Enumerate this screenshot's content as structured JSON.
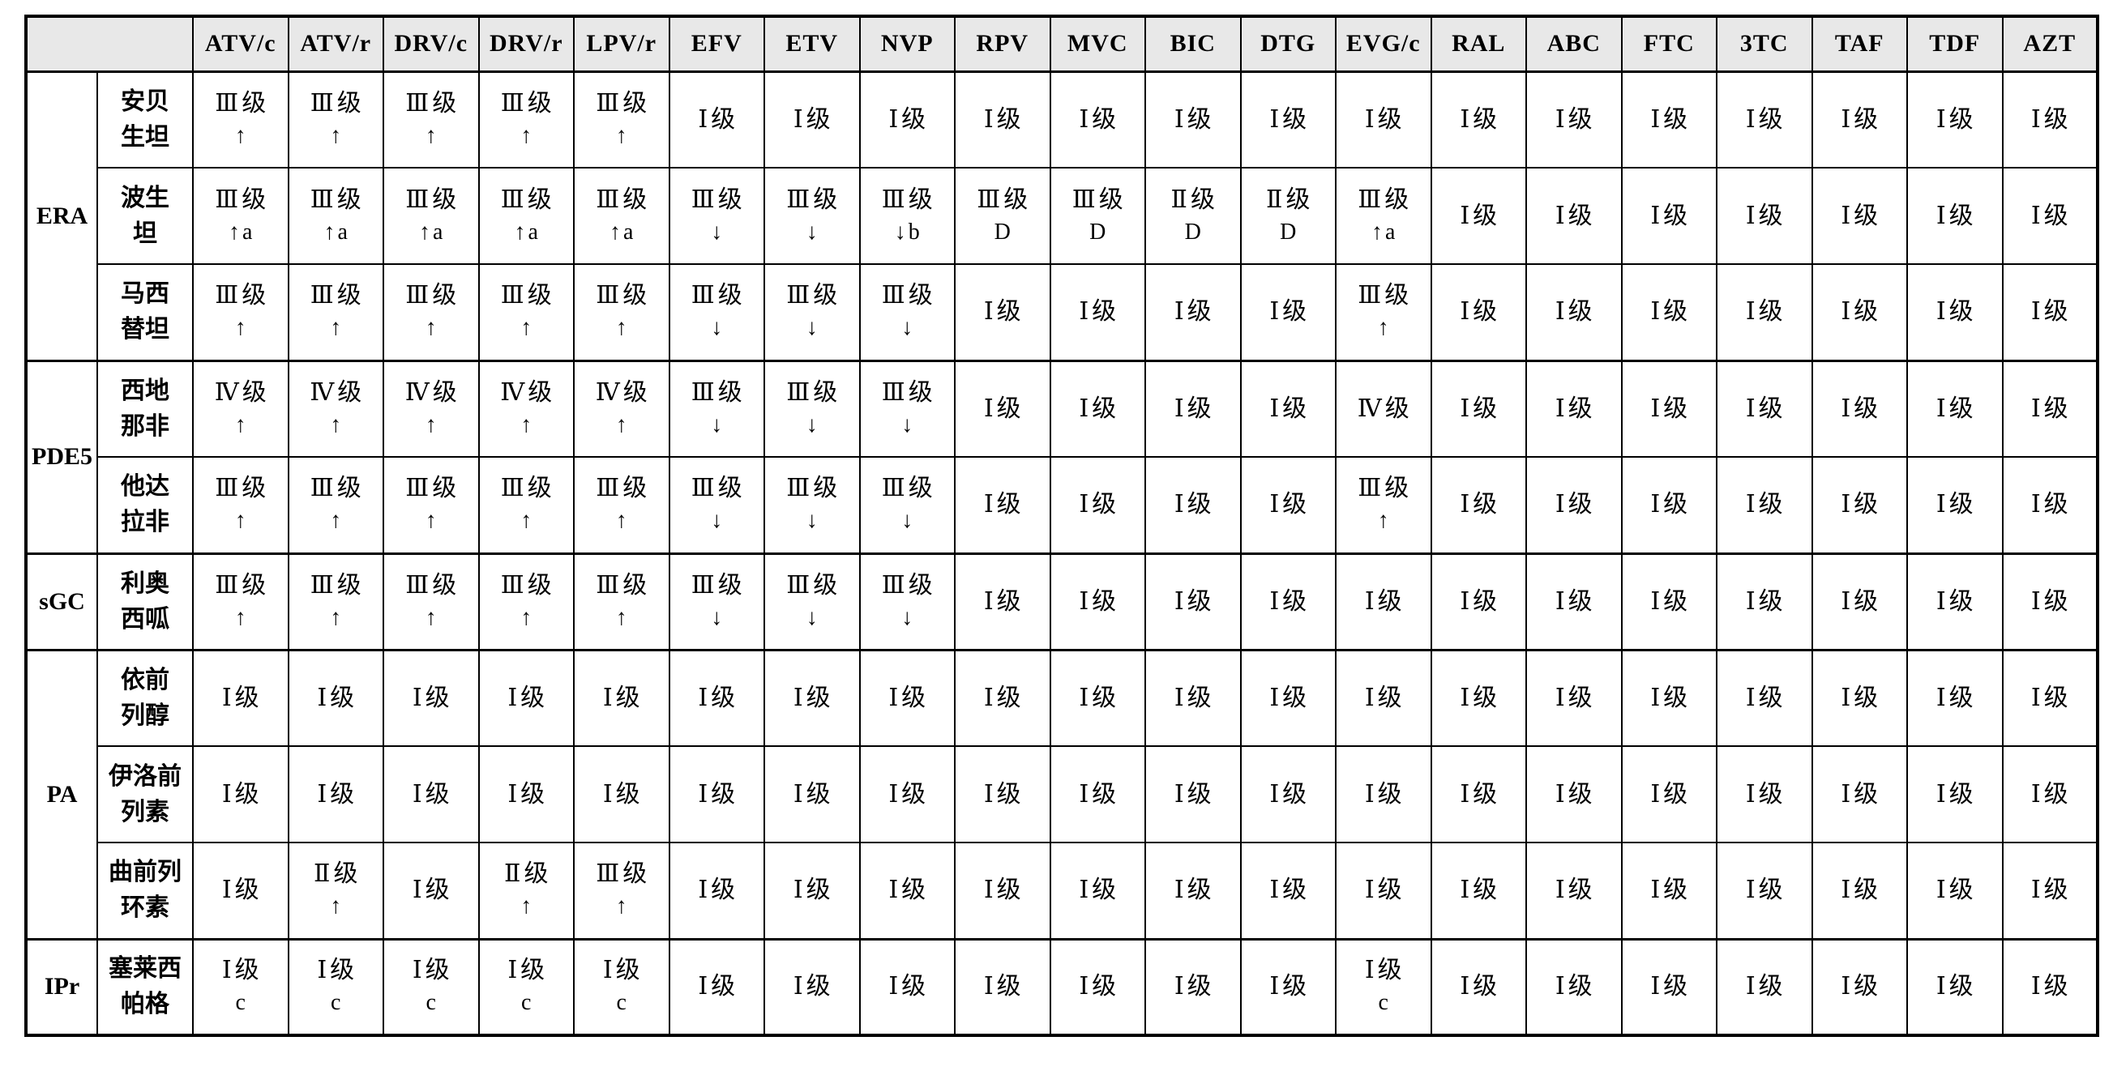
{
  "colors": {
    "page_bg": "#ffffff",
    "header_bg": "#e8e8e8",
    "border": "#000000",
    "text": "#000000"
  },
  "table": {
    "header": {
      "corner": "",
      "columns": [
        "ATV/c",
        "ATV/r",
        "DRV/c",
        "DRV/r",
        "LPV/r",
        "EFV",
        "ETV",
        "NVP",
        "RPV",
        "MVC",
        "BIC",
        "DTG",
        "EVG/c",
        "RAL",
        "ABC",
        "FTC",
        "3TC",
        "TAF",
        "TDF",
        "AZT"
      ]
    },
    "groups": [
      {
        "label": "ERA",
        "rows": [
          {
            "drug": "安贝\n生坦",
            "cells": [
              [
                "Ⅲ级",
                "↑"
              ],
              [
                "Ⅲ级",
                "↑"
              ],
              [
                "Ⅲ级",
                "↑"
              ],
              [
                "Ⅲ级",
                "↑"
              ],
              [
                "Ⅲ级",
                "↑"
              ],
              [
                "Ⅰ级"
              ],
              [
                "Ⅰ级"
              ],
              [
                "Ⅰ级"
              ],
              [
                "Ⅰ级"
              ],
              [
                "Ⅰ级"
              ],
              [
                "Ⅰ级"
              ],
              [
                "Ⅰ级"
              ],
              [
                "Ⅰ级"
              ],
              [
                "Ⅰ级"
              ],
              [
                "Ⅰ级"
              ],
              [
                "Ⅰ级"
              ],
              [
                "Ⅰ级"
              ],
              [
                "Ⅰ级"
              ],
              [
                "Ⅰ级"
              ],
              [
                "Ⅰ级"
              ]
            ]
          },
          {
            "drug": "波生\n坦",
            "cells": [
              [
                "Ⅲ级",
                "↑a"
              ],
              [
                "Ⅲ级",
                "↑a"
              ],
              [
                "Ⅲ级",
                "↑a"
              ],
              [
                "Ⅲ级",
                "↑a"
              ],
              [
                "Ⅲ级",
                "↑a"
              ],
              [
                "Ⅲ级",
                "↓"
              ],
              [
                "Ⅲ级",
                "↓"
              ],
              [
                "Ⅲ级",
                "↓b"
              ],
              [
                "Ⅲ级",
                "D"
              ],
              [
                "Ⅲ级",
                "D"
              ],
              [
                "Ⅱ级",
                "D"
              ],
              [
                "Ⅱ级",
                "D"
              ],
              [
                "Ⅲ级",
                "↑a"
              ],
              [
                "Ⅰ级"
              ],
              [
                "Ⅰ级"
              ],
              [
                "Ⅰ级"
              ],
              [
                "Ⅰ级"
              ],
              [
                "Ⅰ级"
              ],
              [
                "Ⅰ级"
              ],
              [
                "Ⅰ级"
              ]
            ]
          },
          {
            "drug": "马西\n替坦",
            "cells": [
              [
                "Ⅲ级",
                "↑"
              ],
              [
                "Ⅲ级",
                "↑"
              ],
              [
                "Ⅲ级",
                "↑"
              ],
              [
                "Ⅲ级",
                "↑"
              ],
              [
                "Ⅲ级",
                "↑"
              ],
              [
                "Ⅲ级",
                "↓"
              ],
              [
                "Ⅲ级",
                "↓"
              ],
              [
                "Ⅲ级",
                "↓"
              ],
              [
                "Ⅰ级"
              ],
              [
                "Ⅰ级"
              ],
              [
                "Ⅰ级"
              ],
              [
                "Ⅰ级"
              ],
              [
                "Ⅲ级",
                "↑"
              ],
              [
                "Ⅰ级"
              ],
              [
                "Ⅰ级"
              ],
              [
                "Ⅰ级"
              ],
              [
                "Ⅰ级"
              ],
              [
                "Ⅰ级"
              ],
              [
                "Ⅰ级"
              ],
              [
                "Ⅰ级"
              ]
            ]
          }
        ]
      },
      {
        "label": "PDE5",
        "rows": [
          {
            "drug": "西地\n那非",
            "cells": [
              [
                "Ⅳ级",
                "↑"
              ],
              [
                "Ⅳ级",
                "↑"
              ],
              [
                "Ⅳ级",
                "↑"
              ],
              [
                "Ⅳ级",
                "↑"
              ],
              [
                "Ⅳ级",
                "↑"
              ],
              [
                "Ⅲ级",
                "↓"
              ],
              [
                "Ⅲ级",
                "↓"
              ],
              [
                "Ⅲ级",
                "↓"
              ],
              [
                "Ⅰ级"
              ],
              [
                "Ⅰ级"
              ],
              [
                "Ⅰ级"
              ],
              [
                "Ⅰ级"
              ],
              [
                "Ⅳ级"
              ],
              [
                "Ⅰ级"
              ],
              [
                "Ⅰ级"
              ],
              [
                "Ⅰ级"
              ],
              [
                "Ⅰ级"
              ],
              [
                "Ⅰ级"
              ],
              [
                "Ⅰ级"
              ],
              [
                "Ⅰ级"
              ]
            ]
          },
          {
            "drug": "他达\n拉非",
            "cells": [
              [
                "Ⅲ级",
                "↑"
              ],
              [
                "Ⅲ级",
                "↑"
              ],
              [
                "Ⅲ级",
                "↑"
              ],
              [
                "Ⅲ级",
                "↑"
              ],
              [
                "Ⅲ级",
                "↑"
              ],
              [
                "Ⅲ级",
                "↓"
              ],
              [
                "Ⅲ级",
                "↓"
              ],
              [
                "Ⅲ级",
                "↓"
              ],
              [
                "Ⅰ级"
              ],
              [
                "Ⅰ级"
              ],
              [
                "Ⅰ级"
              ],
              [
                "Ⅰ级"
              ],
              [
                "Ⅲ级",
                "↑"
              ],
              [
                "Ⅰ级"
              ],
              [
                "Ⅰ级"
              ],
              [
                "Ⅰ级"
              ],
              [
                "Ⅰ级"
              ],
              [
                "Ⅰ级"
              ],
              [
                "Ⅰ级"
              ],
              [
                "Ⅰ级"
              ]
            ]
          }
        ]
      },
      {
        "label": "sGC",
        "rows": [
          {
            "drug": "利奥\n西呱",
            "cells": [
              [
                "Ⅲ级",
                "↑"
              ],
              [
                "Ⅲ级",
                "↑"
              ],
              [
                "Ⅲ级",
                "↑"
              ],
              [
                "Ⅲ级",
                "↑"
              ],
              [
                "Ⅲ级",
                "↑"
              ],
              [
                "Ⅲ级",
                "↓"
              ],
              [
                "Ⅲ级",
                "↓"
              ],
              [
                "Ⅲ级",
                "↓"
              ],
              [
                "Ⅰ级"
              ],
              [
                "Ⅰ级"
              ],
              [
                "Ⅰ级"
              ],
              [
                "Ⅰ级"
              ],
              [
                "Ⅰ级"
              ],
              [
                "Ⅰ级"
              ],
              [
                "Ⅰ级"
              ],
              [
                "Ⅰ级"
              ],
              [
                "Ⅰ级"
              ],
              [
                "Ⅰ级"
              ],
              [
                "Ⅰ级"
              ],
              [
                "Ⅰ级"
              ]
            ]
          }
        ]
      },
      {
        "label": "PA",
        "rows": [
          {
            "drug": "依前\n列醇",
            "cells": [
              [
                "Ⅰ级"
              ],
              [
                "Ⅰ级"
              ],
              [
                "Ⅰ级"
              ],
              [
                "Ⅰ级"
              ],
              [
                "Ⅰ级"
              ],
              [
                "Ⅰ级"
              ],
              [
                "Ⅰ级"
              ],
              [
                "Ⅰ级"
              ],
              [
                "Ⅰ级"
              ],
              [
                "Ⅰ级"
              ],
              [
                "Ⅰ级"
              ],
              [
                "Ⅰ级"
              ],
              [
                "Ⅰ级"
              ],
              [
                "Ⅰ级"
              ],
              [
                "Ⅰ级"
              ],
              [
                "Ⅰ级"
              ],
              [
                "Ⅰ级"
              ],
              [
                "Ⅰ级"
              ],
              [
                "Ⅰ级"
              ],
              [
                "Ⅰ级"
              ]
            ]
          },
          {
            "drug": "伊洛前\n列素",
            "cells": [
              [
                "Ⅰ级"
              ],
              [
                "Ⅰ级"
              ],
              [
                "Ⅰ级"
              ],
              [
                "Ⅰ级"
              ],
              [
                "Ⅰ级"
              ],
              [
                "Ⅰ级"
              ],
              [
                "Ⅰ级"
              ],
              [
                "Ⅰ级"
              ],
              [
                "Ⅰ级"
              ],
              [
                "Ⅰ级"
              ],
              [
                "Ⅰ级"
              ],
              [
                "Ⅰ级"
              ],
              [
                "Ⅰ级"
              ],
              [
                "Ⅰ级"
              ],
              [
                "Ⅰ级"
              ],
              [
                "Ⅰ级"
              ],
              [
                "Ⅰ级"
              ],
              [
                "Ⅰ级"
              ],
              [
                "Ⅰ级"
              ],
              [
                "Ⅰ级"
              ]
            ]
          },
          {
            "drug": "曲前列\n环素",
            "cells": [
              [
                "Ⅰ级"
              ],
              [
                "Ⅱ级",
                "↑"
              ],
              [
                "Ⅰ级"
              ],
              [
                "Ⅱ级",
                "↑"
              ],
              [
                "Ⅲ级",
                "↑"
              ],
              [
                "Ⅰ级"
              ],
              [
                "Ⅰ级"
              ],
              [
                "Ⅰ级"
              ],
              [
                "Ⅰ级"
              ],
              [
                "Ⅰ级"
              ],
              [
                "Ⅰ级"
              ],
              [
                "Ⅰ级"
              ],
              [
                "Ⅰ级"
              ],
              [
                "Ⅰ级"
              ],
              [
                "Ⅰ级"
              ],
              [
                "Ⅰ级"
              ],
              [
                "Ⅰ级"
              ],
              [
                "Ⅰ级"
              ],
              [
                "Ⅰ级"
              ],
              [
                "Ⅰ级"
              ]
            ]
          }
        ]
      },
      {
        "label": "IPr",
        "rows": [
          {
            "drug": "塞莱西\n帕格",
            "cells": [
              [
                "Ⅰ级",
                "c"
              ],
              [
                "Ⅰ级",
                "c"
              ],
              [
                "Ⅰ级",
                "c"
              ],
              [
                "Ⅰ级",
                "c"
              ],
              [
                "Ⅰ级",
                "c"
              ],
              [
                "Ⅰ级"
              ],
              [
                "Ⅰ级"
              ],
              [
                "Ⅰ级"
              ],
              [
                "Ⅰ级"
              ],
              [
                "Ⅰ级"
              ],
              [
                "Ⅰ级"
              ],
              [
                "Ⅰ级"
              ],
              [
                "Ⅰ级",
                "c"
              ],
              [
                "Ⅰ级"
              ],
              [
                "Ⅰ级"
              ],
              [
                "Ⅰ级"
              ],
              [
                "Ⅰ级"
              ],
              [
                "Ⅰ级"
              ],
              [
                "Ⅰ级"
              ],
              [
                "Ⅰ级"
              ]
            ]
          }
        ]
      }
    ]
  }
}
